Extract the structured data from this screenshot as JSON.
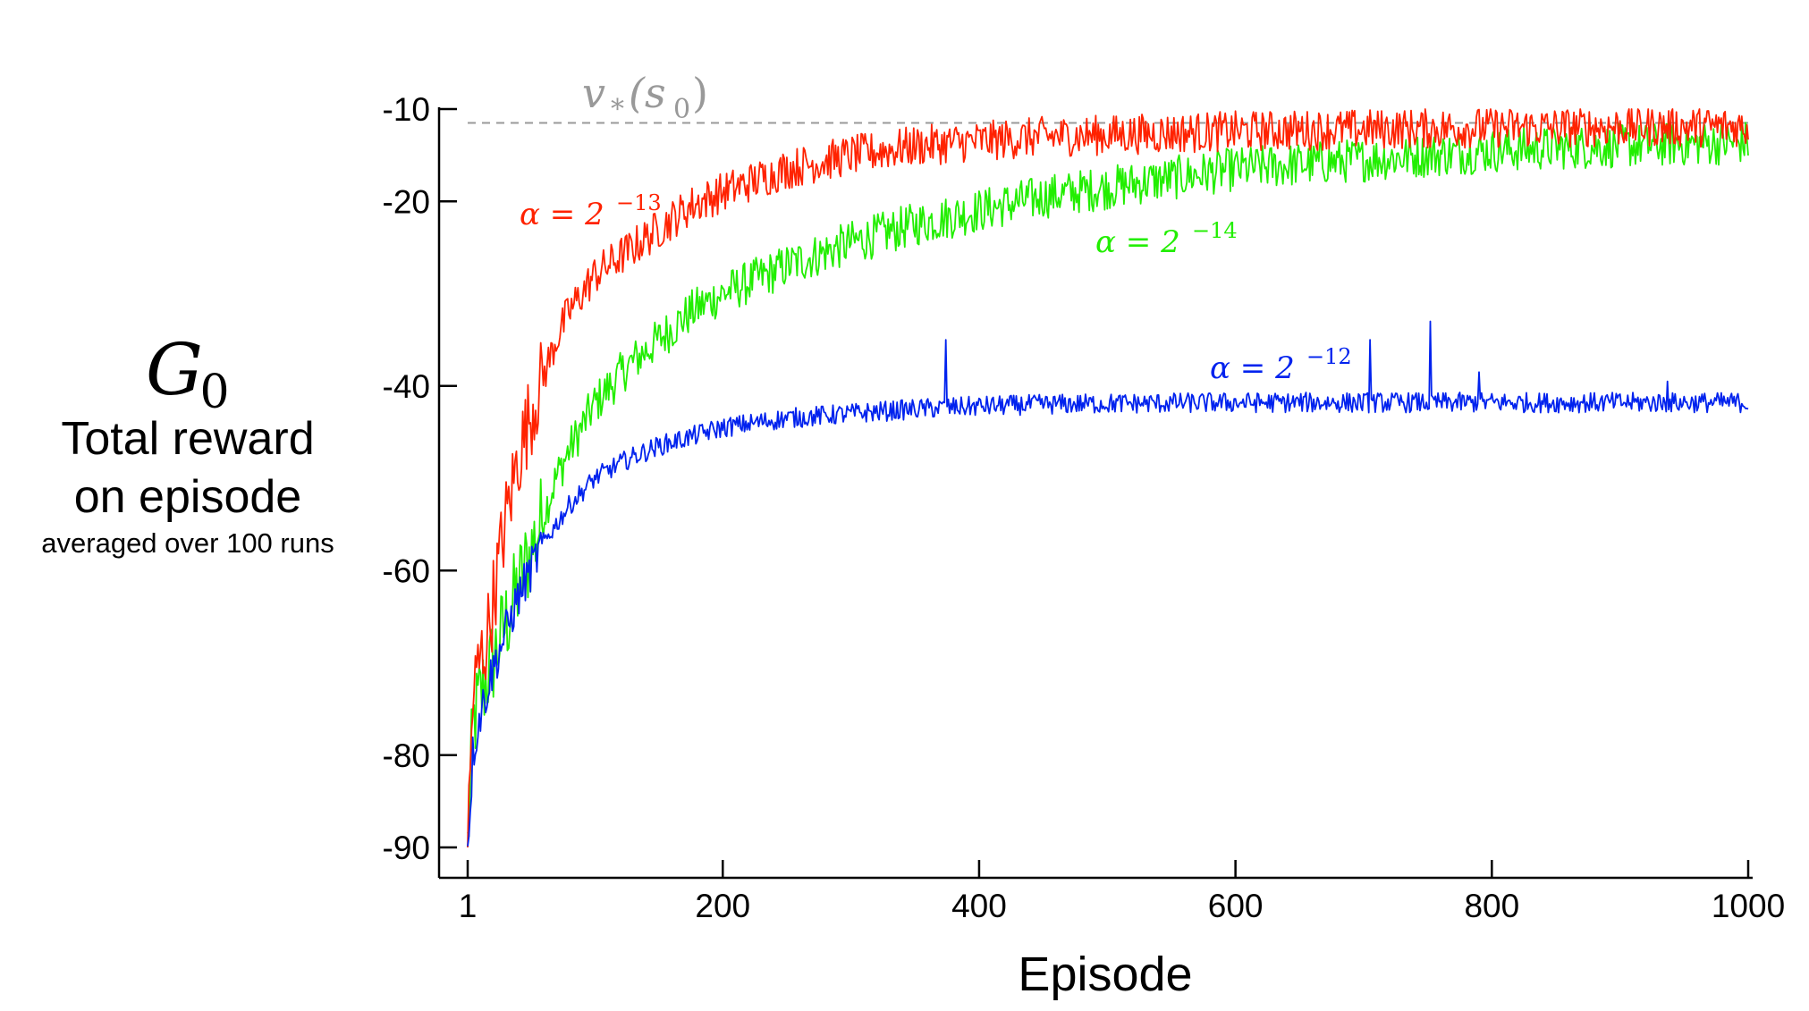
{
  "chart_data": {
    "type": "line",
    "xlabel": "Episode",
    "ylabel": {
      "symbol": "G",
      "subscript": "0",
      "line1": "Total reward",
      "line2": "on episode",
      "line3": "averaged over 100 runs"
    },
    "xlim": [
      1,
      1000
    ],
    "ylim": [
      -90,
      -10
    ],
    "x_ticks": [
      1,
      200,
      400,
      600,
      800,
      1000
    ],
    "x_tick_labels": [
      "1",
      "200",
      "400",
      "600",
      "800",
      "1000"
    ],
    "y_ticks": [
      -10,
      -20,
      -40,
      -60,
      -80,
      -90
    ],
    "y_tick_labels": [
      "-10",
      "-20",
      "-40",
      "-60",
      "-80",
      "-90"
    ],
    "grid": false,
    "reference_line": {
      "y": -11.5,
      "label_main": "v",
      "label_sub": "*",
      "label_arg": "(s",
      "label_arg_sub": "0",
      "label_close": ")",
      "color": "#999999",
      "style": "dashed"
    },
    "series": [
      {
        "name": "α = 2^-13",
        "label_prefix": "α = 2",
        "label_exp": "−13",
        "color": "#ff2200",
        "x": [
          1,
          5,
          10,
          15,
          20,
          30,
          40,
          50,
          60,
          70,
          80,
          100,
          125,
          150,
          175,
          200,
          250,
          300,
          350,
          400,
          450,
          500,
          550,
          600,
          650,
          700,
          750,
          800,
          850,
          900,
          950,
          1000
        ],
        "values": [
          -90,
          -74,
          -70,
          -68,
          -64,
          -55,
          -48,
          -43,
          -39,
          -35,
          -32,
          -28,
          -25.5,
          -23,
          -20.5,
          -19,
          -16.5,
          -15,
          -14,
          -13.5,
          -13,
          -12.8,
          -12.6,
          -12.4,
          -12.3,
          -12.2,
          -12.1,
          -12,
          -12,
          -11.9,
          -11.9,
          -11.9
        ],
        "noise": 2.2
      },
      {
        "name": "α = 2^-14",
        "label_prefix": "α = 2",
        "label_exp": "−14",
        "color": "#22ee00",
        "x": [
          1,
          5,
          10,
          20,
          30,
          40,
          50,
          60,
          70,
          80,
          100,
          125,
          150,
          175,
          200,
          250,
          300,
          350,
          400,
          450,
          500,
          550,
          600,
          650,
          700,
          750,
          800,
          850,
          900,
          950,
          1000
        ],
        "values": [
          -90,
          -77,
          -74,
          -70,
          -66,
          -62,
          -58,
          -54,
          -50,
          -47,
          -42,
          -38,
          -35,
          -32,
          -30,
          -27,
          -24.5,
          -22.5,
          -21,
          -19.5,
          -18.5,
          -17.5,
          -16.5,
          -16,
          -15.5,
          -15,
          -14.5,
          -14.2,
          -14,
          -13.8,
          -13.6
        ],
        "noise": 2.4
      },
      {
        "name": "α = 2^-12",
        "label_prefix": "α = 2",
        "label_exp": "−12",
        "color": "#0022ee",
        "x": [
          1,
          5,
          10,
          20,
          30,
          40,
          50,
          60,
          70,
          80,
          100,
          125,
          150,
          175,
          200,
          250,
          300,
          350,
          400,
          450,
          500,
          600,
          700,
          800,
          900,
          1000
        ],
        "values": [
          -90,
          -80,
          -76,
          -71,
          -67,
          -63,
          -60,
          -57,
          -55,
          -53,
          -50,
          -48,
          -46.5,
          -45.5,
          -44.5,
          -43.5,
          -43,
          -42.5,
          -42.2,
          -42,
          -41.9,
          -41.8,
          -41.8,
          -41.8,
          -41.8,
          -41.8
        ],
        "noise": 1.1,
        "spikes": [
          {
            "x": 374,
            "y": -35
          },
          {
            "x": 705,
            "y": -35
          },
          {
            "x": 752,
            "y": -33
          },
          {
            "x": 790,
            "y": -38.5
          },
          {
            "x": 937,
            "y": -39.5
          }
        ]
      }
    ]
  }
}
